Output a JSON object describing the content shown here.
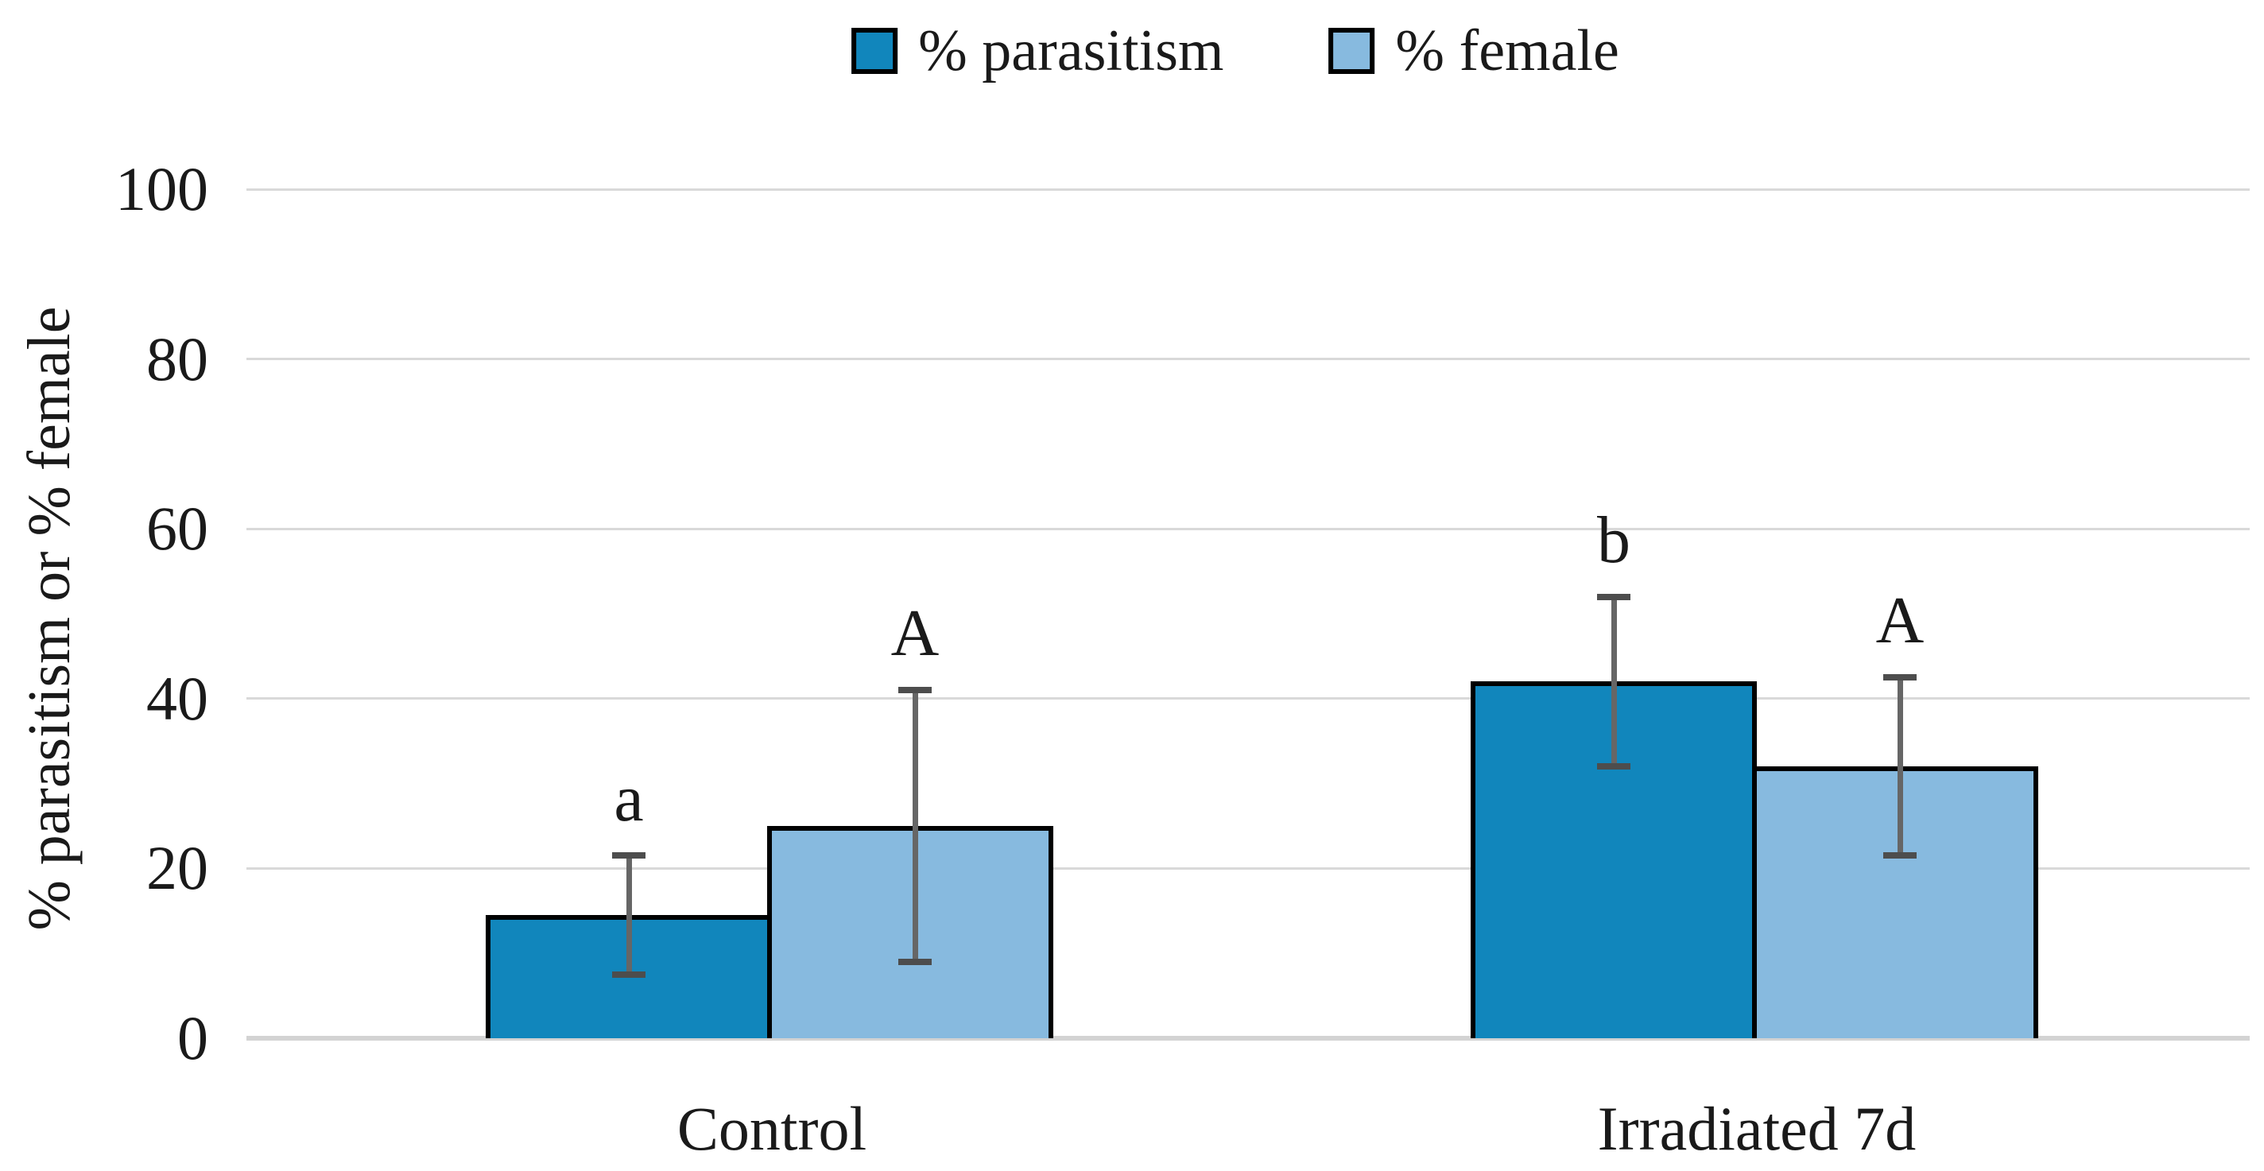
{
  "figure": {
    "background": "#ffffff",
    "text_color": "#1a1a1a"
  },
  "legend": {
    "position": "top-center",
    "items": [
      {
        "label": "% parasitism",
        "color": "#1186BC"
      },
      {
        "label": "% female",
        "color": "#87BADF"
      }
    ]
  },
  "chart_data": {
    "type": "bar",
    "categories": [
      "Control",
      "Irradiated 7d"
    ],
    "series": [
      {
        "name": "% parasitism",
        "color": "#1186BC",
        "values": [
          14.5,
          42
        ],
        "error_low": [
          7.5,
          32
        ],
        "error_high": [
          21.5,
          52
        ],
        "sig_letters": [
          "a",
          "b"
        ]
      },
      {
        "name": "% female",
        "color": "#87BADF",
        "values": [
          25,
          32
        ],
        "error_low": [
          9,
          21.5
        ],
        "error_high": [
          41,
          42.5
        ],
        "sig_letters": [
          "A",
          "A"
        ]
      }
    ],
    "title": "",
    "xlabel": "",
    "ylabel": "% parasitism or % female",
    "ylim": [
      0,
      100
    ],
    "yticks": [
      0,
      20,
      40,
      60,
      80,
      100
    ],
    "grid": true,
    "legend_position": "top",
    "bar_border_color": "#000000",
    "error_bar_color": "#666666",
    "error_cap_color": "#4D4D4D",
    "gridline_color": "#D9D9D9",
    "baseline_color": "#D3D3D3"
  }
}
